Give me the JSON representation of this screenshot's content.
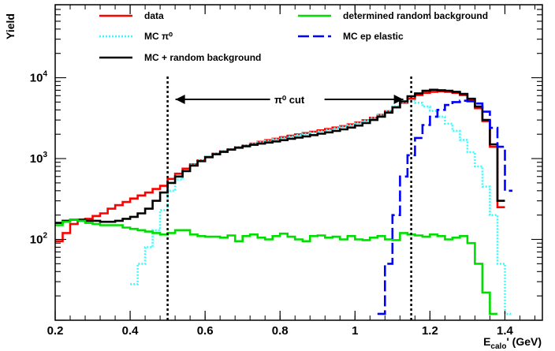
{
  "chart_data": {
    "type": "line",
    "xlabel": "E_calo' (GeV)",
    "xlabel_main": "E",
    "xlabel_sub": "calo",
    "xlabel_rest": "' (GeV)",
    "ylabel": "Yield",
    "yscale": "log",
    "xlim": [
      0.2,
      1.5
    ],
    "ylim": [
      10,
      80000
    ],
    "x_ticks": [
      {
        "value": 0.2,
        "label": "0.2"
      },
      {
        "value": 0.4,
        "label": "0.4"
      },
      {
        "value": 0.6,
        "label": "0.6"
      },
      {
        "value": 0.8,
        "label": "0.8"
      },
      {
        "value": 1.0,
        "label": "1"
      },
      {
        "value": 1.2,
        "label": "1.2"
      },
      {
        "value": 1.4,
        "label": "1.4"
      }
    ],
    "y_ticks": [
      {
        "value": 100,
        "base": "10",
        "exp": "2"
      },
      {
        "value": 1000,
        "base": "10",
        "exp": "3"
      },
      {
        "value": 10000,
        "base": "10",
        "exp": "4"
      }
    ],
    "colors": {
      "data": "#ff0000",
      "mc_pi0": "#33ffff",
      "mc_plus_bg": "#000000",
      "random_bg": "#00dd00",
      "mc_ep_elastic": "#0000ff"
    },
    "legend": [
      {
        "key": "data",
        "label": "data",
        "style": "solid",
        "color": "#ff0000"
      },
      {
        "key": "mc_pi0",
        "label": "MC π⁰",
        "style": "dotted",
        "color": "#33ffff"
      },
      {
        "key": "mc_plus_bg",
        "label": "MC + random background",
        "style": "solid",
        "color": "#000000"
      },
      {
        "key": "random_bg",
        "label": "determined random background",
        "style": "solid",
        "color": "#00dd00"
      },
      {
        "key": "mc_ep_elastic",
        "label": "MC ep elastic",
        "style": "dashed",
        "color": "#0000ff"
      }
    ],
    "annotations": {
      "cut_label": "π⁰ cut",
      "cut_lines": [
        0.5,
        1.15
      ]
    },
    "x": [
      0.21,
      0.23,
      0.25,
      0.27,
      0.29,
      0.31,
      0.33,
      0.35,
      0.37,
      0.39,
      0.41,
      0.43,
      0.45,
      0.47,
      0.49,
      0.51,
      0.53,
      0.55,
      0.57,
      0.59,
      0.61,
      0.63,
      0.65,
      0.67,
      0.69,
      0.71,
      0.73,
      0.75,
      0.77,
      0.79,
      0.81,
      0.83,
      0.85,
      0.87,
      0.89,
      0.91,
      0.93,
      0.95,
      0.97,
      0.99,
      1.01,
      1.03,
      1.05,
      1.07,
      1.09,
      1.11,
      1.13,
      1.15,
      1.17,
      1.19,
      1.21,
      1.23,
      1.25,
      1.27,
      1.29,
      1.31,
      1.33,
      1.35,
      1.37,
      1.39,
      1.41,
      1.43,
      1.45,
      1.47,
      1.49
    ],
    "series": [
      {
        "key": "data",
        "name": "data",
        "values": [
          95,
          120,
          155,
          175,
          180,
          195,
          210,
          240,
          265,
          290,
          320,
          350,
          380,
          420,
          460,
          560,
          650,
          750,
          850,
          950,
          1050,
          1150,
          1230,
          1300,
          1380,
          1450,
          1530,
          1610,
          1690,
          1760,
          1840,
          1920,
          1990,
          2070,
          2150,
          2230,
          2320,
          2420,
          2520,
          2650,
          2800,
          2980,
          3200,
          3480,
          3850,
          4300,
          4900,
          5500,
          6100,
          6500,
          6700,
          6800,
          6700,
          6500,
          6100,
          5300,
          4200,
          2900,
          1400,
          250,
          null,
          null,
          null,
          null,
          null
        ]
      },
      {
        "key": "mc_pi0",
        "name": "MC π⁰",
        "values": [
          null,
          null,
          null,
          null,
          null,
          null,
          null,
          null,
          null,
          null,
          28,
          50,
          80,
          130,
          230,
          400,
          550,
          700,
          840,
          960,
          1070,
          1160,
          1240,
          1310,
          1380,
          1450,
          1520,
          1590,
          1660,
          1730,
          1800,
          1870,
          1950,
          2020,
          2100,
          2180,
          2270,
          2370,
          2470,
          2600,
          2760,
          2950,
          3180,
          3480,
          3900,
          4400,
          5000,
          5200,
          4900,
          4400,
          3900,
          3300,
          2700,
          2200,
          1700,
          1200,
          800,
          450,
          200,
          50,
          12,
          null,
          null,
          null,
          null
        ]
      },
      {
        "key": "mc_plus_bg",
        "name": "MC + random background",
        "values": [
          160,
          170,
          175,
          175,
          170,
          170,
          165,
          165,
          170,
          180,
          190,
          210,
          240,
          300,
          380,
          500,
          600,
          700,
          820,
          930,
          1040,
          1130,
          1210,
          1290,
          1360,
          1420,
          1480,
          1530,
          1580,
          1630,
          1690,
          1760,
          1820,
          1880,
          1950,
          2030,
          2110,
          2200,
          2300,
          2420,
          2560,
          2750,
          3000,
          3300,
          3700,
          4300,
          5100,
          5900,
          6400,
          6900,
          7100,
          7000,
          6900,
          6700,
          6300,
          5500,
          4400,
          3000,
          1500,
          300,
          null,
          null,
          null,
          null,
          null
        ]
      },
      {
        "key": "random_bg",
        "name": "determined random background",
        "values": [
          150,
          165,
          175,
          170,
          160,
          155,
          150,
          150,
          150,
          140,
          135,
          130,
          125,
          120,
          115,
          120,
          130,
          130,
          115,
          110,
          108,
          108,
          105,
          112,
          95,
          110,
          115,
          105,
          100,
          110,
          118,
          108,
          100,
          95,
          110,
          112,
          105,
          108,
          100,
          110,
          100,
          98,
          105,
          110,
          100,
          98,
          120,
          115,
          112,
          108,
          115,
          110,
          100,
          105,
          110,
          90,
          50,
          22,
          12,
          null,
          null,
          null,
          null,
          null,
          null
        ]
      },
      {
        "key": "mc_ep_elastic",
        "name": "MC ep elastic",
        "values": [
          null,
          null,
          null,
          null,
          null,
          null,
          null,
          null,
          null,
          null,
          null,
          null,
          null,
          null,
          null,
          null,
          null,
          null,
          null,
          null,
          null,
          null,
          null,
          null,
          null,
          null,
          null,
          null,
          null,
          null,
          null,
          null,
          null,
          null,
          null,
          null,
          null,
          null,
          null,
          null,
          null,
          null,
          null,
          12,
          50,
          200,
          600,
          1100,
          1800,
          2600,
          3300,
          4000,
          4600,
          5000,
          5200,
          5100,
          4800,
          3800,
          2400,
          1400,
          400,
          null,
          null,
          null,
          null
        ]
      }
    ]
  }
}
